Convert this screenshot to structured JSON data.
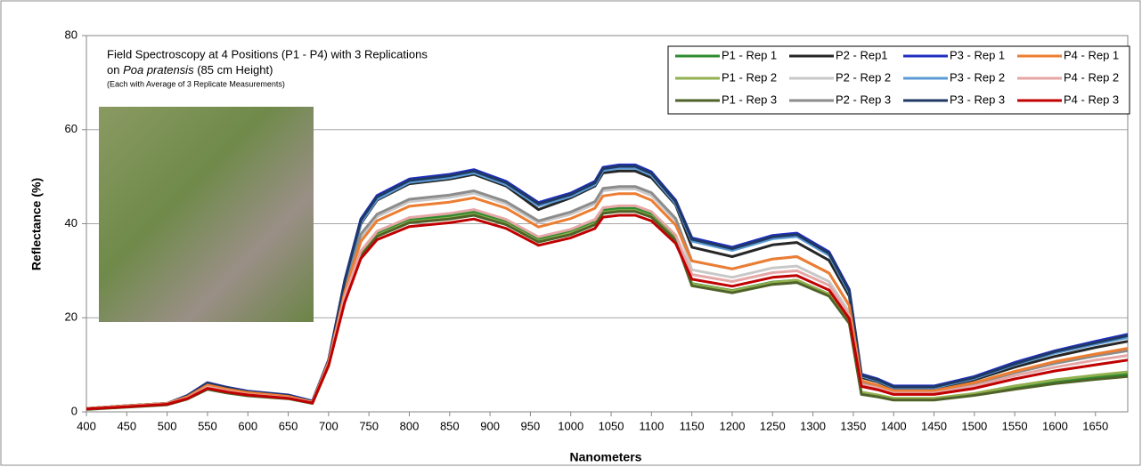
{
  "chart_data": {
    "type": "line",
    "title": "Field Spectroscopy at 4 Positions (P1 - P4) with 3 Replications",
    "subtitle_parts": [
      "on ",
      "Poa pratensis",
      " (85 cm Height)"
    ],
    "note": "(Each with Average of 3 Replicate Measurements)",
    "x_label": "Nanometers",
    "y_label": "Reflectance (%)",
    "xlim": [
      400,
      1690
    ],
    "ylim": [
      0,
      80
    ],
    "xticks": [
      400,
      450,
      500,
      550,
      600,
      650,
      700,
      750,
      800,
      850,
      900,
      950,
      1000,
      1050,
      1100,
      1150,
      1200,
      1250,
      1300,
      1350,
      1400,
      1450,
      1500,
      1550,
      1600,
      1650
    ],
    "yticks": [
      0,
      20,
      40,
      60,
      80
    ],
    "grid": true,
    "legend": "top-right",
    "x": [
      400,
      450,
      500,
      525,
      550,
      575,
      600,
      650,
      680,
      700,
      720,
      740,
      760,
      800,
      850,
      880,
      920,
      960,
      1000,
      1030,
      1040,
      1060,
      1080,
      1100,
      1130,
      1150,
      1200,
      1250,
      1280,
      1320,
      1345,
      1360,
      1380,
      1400,
      1450,
      1500,
      1550,
      1600,
      1650,
      1690
    ],
    "series": [
      {
        "name": "P1 - Rep 1",
        "color": "#2e8b2e",
        "values": [
          0.6,
          1.1,
          1.6,
          2.8,
          5.0,
          4.2,
          3.5,
          2.9,
          1.9,
          10,
          24,
          33.8,
          38,
          40.8,
          41.7,
          42.5,
          40.4,
          36.7,
          38.4,
          40.4,
          42.9,
          43.3,
          43.3,
          42.1,
          37.1,
          27.3,
          25.8,
          27.6,
          28,
          25,
          19.2,
          3.9,
          3.4,
          2.7,
          2.7,
          3.7,
          5.1,
          6.4,
          7.4,
          8
        ]
      },
      {
        "name": "P1 - Rep 2",
        "color": "#92b050",
        "values": [
          0.6,
          1.1,
          1.6,
          2.8,
          4.9,
          4.1,
          3.5,
          2.8,
          1.9,
          9.9,
          23.8,
          33.4,
          37.5,
          40.4,
          41.2,
          42,
          40,
          36.3,
          38,
          40,
          42.4,
          42.8,
          42.8,
          41.6,
          36.7,
          27.2,
          25.7,
          27.5,
          28,
          25,
          19.1,
          4.2,
          3.6,
          2.9,
          2.9,
          3.9,
          5.5,
          6.8,
          7.8,
          8.5
        ]
      },
      {
        "name": "P1 - Rep 3",
        "color": "#4f6228",
        "values": [
          0.5,
          1.0,
          1.5,
          2.7,
          4.8,
          4.0,
          3.4,
          2.8,
          1.8,
          9.8,
          23.6,
          33.2,
          37.3,
          40.2,
          41,
          41.8,
          39.8,
          36.1,
          37.7,
          39.8,
          42.2,
          42.6,
          42.6,
          41.4,
          36.5,
          26.8,
          25.3,
          27.1,
          27.5,
          24.6,
          18.8,
          3.7,
          3.2,
          2.5,
          2.5,
          3.5,
          4.8,
          6,
          6.9,
          7.5
        ]
      },
      {
        "name": "P2 - Rep1",
        "color": "#262626",
        "values": [
          0.7,
          1.3,
          1.8,
          3.3,
          5.9,
          5.0,
          4.2,
          3.4,
          2.2,
          10.8,
          27.5,
          40,
          45,
          48.5,
          49.5,
          50.5,
          48,
          43,
          45.5,
          48,
          50.8,
          51.2,
          51.2,
          49.8,
          44,
          35,
          33,
          35.5,
          36,
          32.2,
          24.6,
          7.3,
          6.4,
          5,
          5,
          6.8,
          9.5,
          11.8,
          13.7,
          15
        ]
      },
      {
        "name": "P2 - Rep 2",
        "color": "#c8c8c8",
        "values": [
          0.6,
          1.2,
          1.7,
          3.0,
          5.4,
          4.5,
          3.8,
          3.1,
          2.0,
          10.3,
          25.8,
          37,
          41.5,
          44.7,
          45.6,
          46.5,
          44.2,
          40.2,
          42,
          44.2,
          47,
          47.4,
          47.4,
          46,
          40.6,
          30.2,
          28.6,
          30.6,
          31,
          27.7,
          21.2,
          5.4,
          4.7,
          3.7,
          3.7,
          5,
          7,
          8.7,
          10,
          11
        ]
      },
      {
        "name": "P2 - Rep 3",
        "color": "#8c8c8c",
        "values": [
          0.6,
          1.2,
          1.7,
          3.1,
          5.6,
          4.7,
          4.0,
          3.2,
          2.1,
          10.5,
          26,
          37.8,
          42,
          45.2,
          46.1,
          47,
          44.7,
          40.6,
          42.5,
          44.7,
          47.5,
          47.9,
          47.9,
          46.6,
          41.1,
          32.1,
          30.4,
          32.5,
          33,
          29.5,
          22.6,
          6.3,
          5.5,
          4.3,
          4.3,
          5.9,
          8.3,
          10.3,
          11.9,
          13
        ]
      },
      {
        "name": "P3 - Rep 1",
        "color": "#1f2dbf",
        "values": [
          0.7,
          1.3,
          1.8,
          3.5,
          6.2,
          5.2,
          4.4,
          3.6,
          2.3,
          11,
          28,
          41,
          46,
          49.5,
          50.5,
          51.5,
          49,
          44.5,
          46.5,
          49,
          52,
          52.5,
          52.5,
          51,
          45,
          37,
          35,
          37.5,
          38,
          34,
          26,
          8,
          7,
          5.5,
          5.5,
          7.5,
          10.5,
          13,
          15,
          16.5
        ]
      },
      {
        "name": "P3 - Rep 2",
        "color": "#5b9bd5",
        "values": [
          0.7,
          1.3,
          1.8,
          3.4,
          6.0,
          5.0,
          4.2,
          3.4,
          2.2,
          10.8,
          27.5,
          40.2,
          45.2,
          48.8,
          49.8,
          50.8,
          48.3,
          43.8,
          45.8,
          48.3,
          51.3,
          51.8,
          51.8,
          50.3,
          44.3,
          36.3,
          34.3,
          36.8,
          37.3,
          33.3,
          25.3,
          7.6,
          6.6,
          5.1,
          5.1,
          7.1,
          10,
          12.5,
          14.4,
          15.8
        ]
      },
      {
        "name": "P3 - Rep 3",
        "color": "#1f3864",
        "values": [
          0.7,
          1.3,
          1.8,
          3.4,
          6.1,
          5.1,
          4.3,
          3.5,
          2.2,
          11,
          27.8,
          40.7,
          45.7,
          49.2,
          50.2,
          51.2,
          48.7,
          44.2,
          46.2,
          48.7,
          51.7,
          52.2,
          52.2,
          50.7,
          44.7,
          36.7,
          34.7,
          37.2,
          37.7,
          33.7,
          25.7,
          7.8,
          6.8,
          5.3,
          5.3,
          7.3,
          10.2,
          12.8,
          14.7,
          16.2
        ]
      },
      {
        "name": "P4 - Rep 1",
        "color": "#ed7d31",
        "values": [
          0.7,
          1.3,
          1.8,
          3.2,
          5.7,
          4.8,
          4.1,
          3.3,
          2.1,
          10.6,
          25.5,
          36.2,
          40.6,
          43.7,
          44.6,
          45.5,
          43.3,
          39.3,
          41.1,
          43.3,
          45.9,
          46.4,
          46.4,
          45,
          39.7,
          32.1,
          30.4,
          32.5,
          33,
          29.5,
          22.6,
          6.6,
          5.7,
          4.5,
          4.5,
          6.2,
          8.6,
          10.7,
          12.3,
          13.5
        ]
      },
      {
        "name": "P4 - Rep 2",
        "color": "#e6a6a6",
        "values": [
          0.6,
          1.2,
          1.7,
          2.9,
          5.3,
          4.4,
          3.7,
          3.0,
          2.0,
          10.2,
          24.5,
          34.2,
          38.4,
          41.3,
          42.2,
          43,
          40.9,
          37.2,
          38.8,
          40.9,
          43.4,
          43.8,
          43.8,
          42.6,
          37.6,
          29.2,
          27.7,
          29.6,
          30,
          26.9,
          20.5,
          5.8,
          5.1,
          4,
          4,
          5.5,
          7.7,
          9.5,
          11,
          12
        ]
      },
      {
        "name": "P4 - Rep 3",
        "color": "#c00000",
        "values": [
          0.6,
          1.1,
          1.6,
          2.8,
          5.0,
          4.2,
          3.6,
          2.9,
          1.9,
          9.9,
          23.3,
          32.6,
          36.6,
          39.4,
          40.2,
          41,
          39,
          35.4,
          37,
          39,
          41.4,
          41.8,
          41.8,
          40.6,
          35.8,
          28.2,
          26.7,
          28.6,
          29,
          25.9,
          19.8,
          5.4,
          4.7,
          3.7,
          3.7,
          5,
          7,
          8.7,
          10,
          11
        ]
      }
    ]
  }
}
